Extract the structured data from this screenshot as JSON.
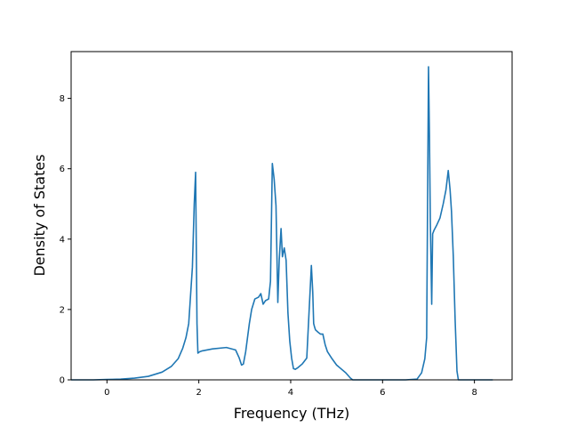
{
  "chart_data": {
    "type": "line",
    "title": "",
    "xlabel": "Frequency (THz)",
    "ylabel": "Density of States",
    "xlim": [
      -0.78,
      8.82
    ],
    "ylim": [
      0,
      9.33
    ],
    "xticks": [
      0,
      2,
      4,
      6,
      8
    ],
    "yticks": [
      0,
      2,
      4,
      6,
      8
    ],
    "grid": false,
    "legend": "none",
    "colors": {
      "line": "#1f77b4",
      "axes": "#000000",
      "background": "#ffffff"
    },
    "series": [
      {
        "x": [
          -0.78,
          -0.3,
          0.0,
          0.3,
          0.6,
          0.9,
          1.2,
          1.4,
          1.55,
          1.65,
          1.72,
          1.78,
          1.82,
          1.86,
          1.9,
          1.93,
          1.96,
          1.98,
          2.0,
          2.02,
          2.06,
          2.3,
          2.6,
          2.8,
          2.88,
          2.93,
          2.97,
          3.02,
          3.06,
          3.1,
          3.15,
          3.22,
          3.3,
          3.35,
          3.4,
          3.45,
          3.52,
          3.56,
          3.6,
          3.64,
          3.68,
          3.72,
          3.75,
          3.79,
          3.82,
          3.86,
          3.9,
          3.94,
          3.98,
          4.02,
          4.06,
          4.1,
          4.16,
          4.25,
          4.35,
          4.45,
          4.48,
          4.5,
          4.52,
          4.54,
          4.6,
          4.65,
          4.7,
          4.75,
          4.8,
          4.9,
          5.0,
          5.2,
          5.3,
          5.35,
          5.5,
          6.0,
          6.5,
          6.75,
          6.85,
          6.92,
          6.96,
          7.0,
          7.02,
          7.04,
          7.07,
          7.09,
          7.12,
          7.18,
          7.25,
          7.32,
          7.38,
          7.43,
          7.47,
          7.5,
          7.54,
          7.58,
          7.62,
          7.65,
          7.7,
          8.0,
          8.4
        ],
        "y": [
          0,
          0,
          0.01,
          0.02,
          0.05,
          0.1,
          0.22,
          0.38,
          0.6,
          0.9,
          1.2,
          1.6,
          2.4,
          3.2,
          5.0,
          5.9,
          1.6,
          0.76,
          0.78,
          0.8,
          0.82,
          0.88,
          0.92,
          0.85,
          0.62,
          0.42,
          0.45,
          0.8,
          1.2,
          1.6,
          2.0,
          2.3,
          2.35,
          2.45,
          2.15,
          2.25,
          2.3,
          2.8,
          6.15,
          5.7,
          4.95,
          2.2,
          3.4,
          4.3,
          3.5,
          3.75,
          3.4,
          1.9,
          1.1,
          0.62,
          0.32,
          0.3,
          0.35,
          0.45,
          0.62,
          3.25,
          2.5,
          1.6,
          1.5,
          1.42,
          1.35,
          1.3,
          1.3,
          1.0,
          0.8,
          0.6,
          0.42,
          0.2,
          0.05,
          0.0,
          0.0,
          0.0,
          0.0,
          0.02,
          0.2,
          0.6,
          1.2,
          8.9,
          7.0,
          4.5,
          2.15,
          4.15,
          4.25,
          4.4,
          4.6,
          5.0,
          5.4,
          5.95,
          5.4,
          4.8,
          3.5,
          1.7,
          0.25,
          0.0,
          0.0,
          0.0,
          0.0
        ]
      }
    ]
  }
}
